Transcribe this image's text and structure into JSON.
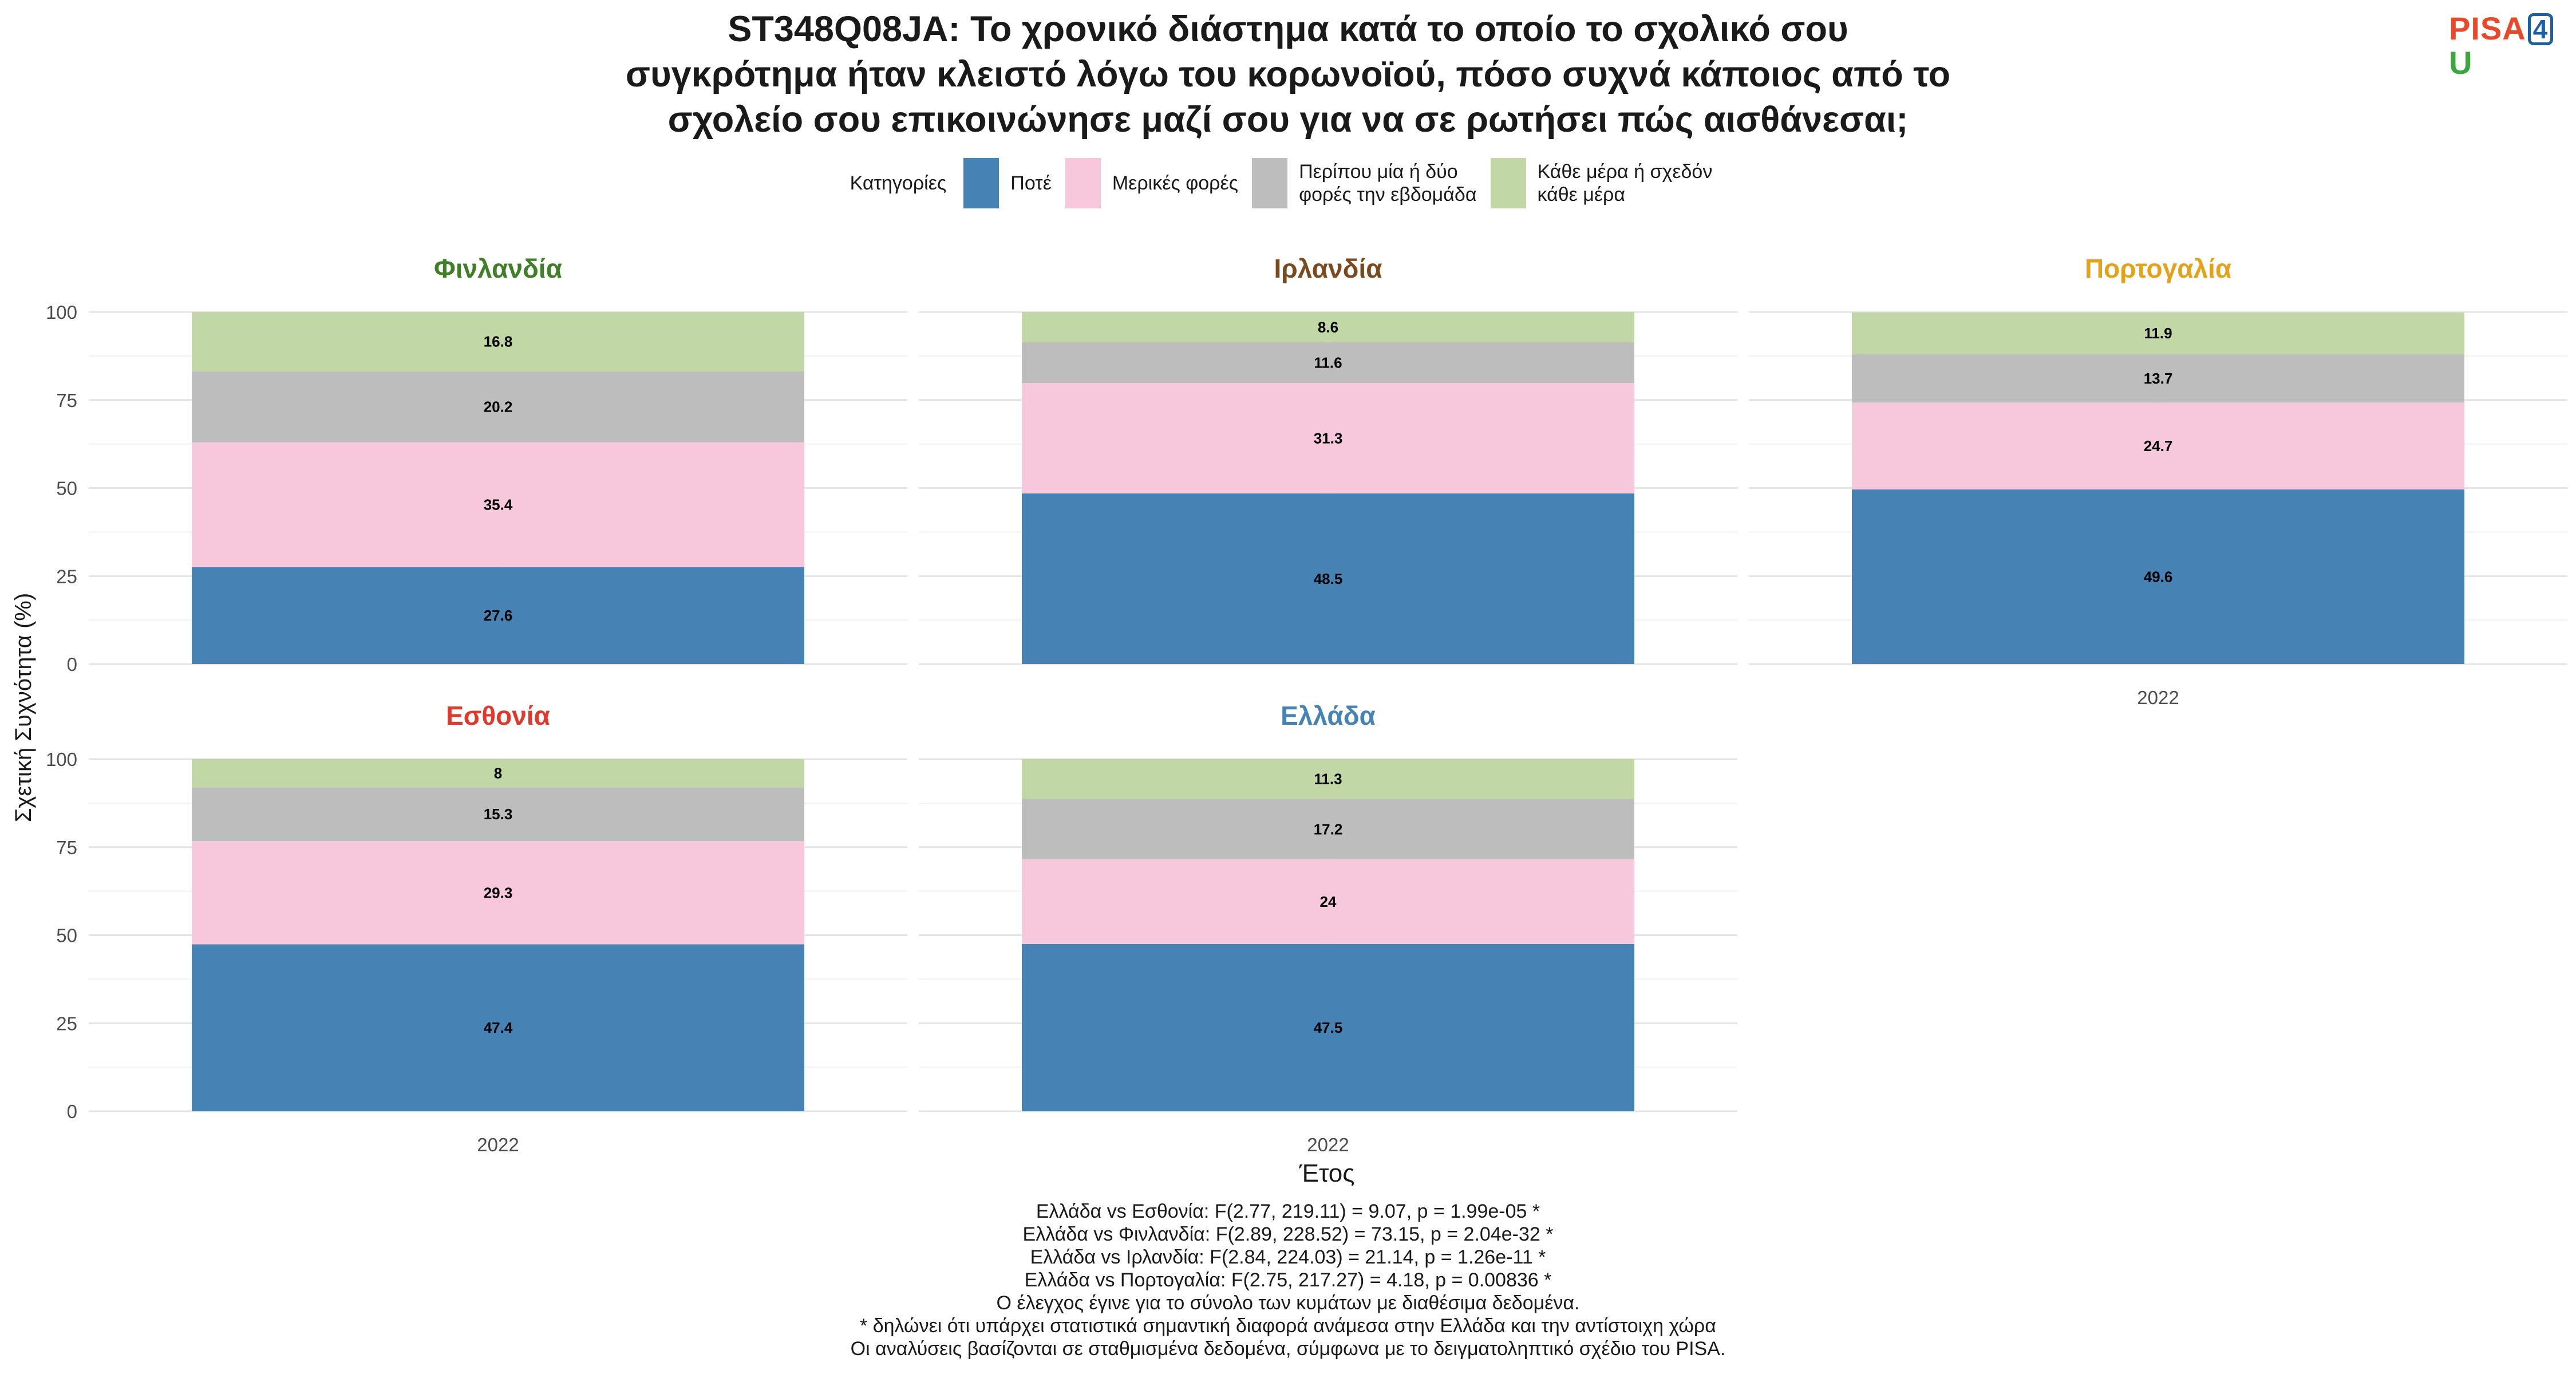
{
  "title_lines": [
    "ST348Q08JA: Το χρονικό διάστημα κατά το οποίο το σχολικό σου",
    "συγκρότημα ήταν κλειστό λόγω του κορωνοϊού, πόσο συχνά κάποιος από το",
    "σχολείο σου επικοινώνησε μαζί σου για να σε ρωτήσει πώς αισθάνεσαι;"
  ],
  "logo": {
    "pisa": "PISA",
    "four": "4",
    "u": "U"
  },
  "legend": {
    "title": "Κατηγορίες",
    "items": [
      {
        "label": "Ποτέ",
        "color": "#4682b4"
      },
      {
        "label": "Μερικές φορές",
        "color": "#f7c8dc"
      },
      {
        "label": "Περίπου μία ή δύο\nφορές την εβδομάδα",
        "color": "#bdbdbd"
      },
      {
        "label": "Κάθε μέρα ή σχεδόν\nκάθε μέρα",
        "color": "#c1d7a5"
      }
    ]
  },
  "chart_data": {
    "type": "bar",
    "stacked": true,
    "percent_stacked": true,
    "ylabel": "Σχετική Συχνότητα (%)",
    "xlabel": "Έτος",
    "ylim": [
      0,
      100
    ],
    "y_ticks": [
      0,
      25,
      50,
      75,
      100
    ],
    "grid": true,
    "legend_position": "top",
    "panels": [
      {
        "title": "Φινλανδία",
        "title_color": "#3f7f28",
        "x_label": "",
        "categories": [
          "2022"
        ],
        "values": [
          27.6,
          35.4,
          20.2,
          16.8
        ]
      },
      {
        "title": "Ιρλανδία",
        "title_color": "#7b4a1e",
        "x_label": "",
        "categories": [
          "2022"
        ],
        "values": [
          48.5,
          31.3,
          11.6,
          8.6
        ]
      },
      {
        "title": "Πορτογαλία",
        "title_color": "#e5a117",
        "x_label": "2022",
        "categories": [
          "2022"
        ],
        "values": [
          49.6,
          24.7,
          13.7,
          11.9
        ]
      },
      {
        "title": "Εσθονία",
        "title_color": "#e0392b",
        "x_label": "2022",
        "categories": [
          "2022"
        ],
        "values": [
          47.4,
          29.3,
          15.3,
          8
        ]
      },
      {
        "title": "Ελλάδα",
        "title_color": "#4682b4",
        "x_label": "2022",
        "categories": [
          "2022"
        ],
        "values": [
          47.5,
          24,
          17.2,
          11.3
        ]
      }
    ]
  },
  "footnote_lines": [
    "Ελλάδα vs Εσθονία: F(2.77, 219.11) = 9.07, p = 1.99e-05 *",
    "Ελλάδα vs Φινλανδία: F(2.89, 228.52) = 73.15, p = 2.04e-32 *",
    "Ελλάδα vs Ιρλανδία: F(2.84, 224.03) = 21.14, p = 1.26e-11 *",
    "Ελλάδα vs Πορτογαλία: F(2.75, 217.27) = 4.18, p = 0.00836 *",
    "Ο έλεγχος έγινε για το σύνολο των κυμάτων με διαθέσιμα δεδομένα.",
    "* δηλώνει ότι υπάρχει στατιστικά σημαντική διαφορά ανάμεσα στην Ελλάδα και την αντίστοιχη χώρα",
    "Οι αναλύσεις βασίζονται σε σταθμισμένα δεδομένα, σύμφωνα με το δειγματοληπτικό σχέδιο του PISA."
  ]
}
